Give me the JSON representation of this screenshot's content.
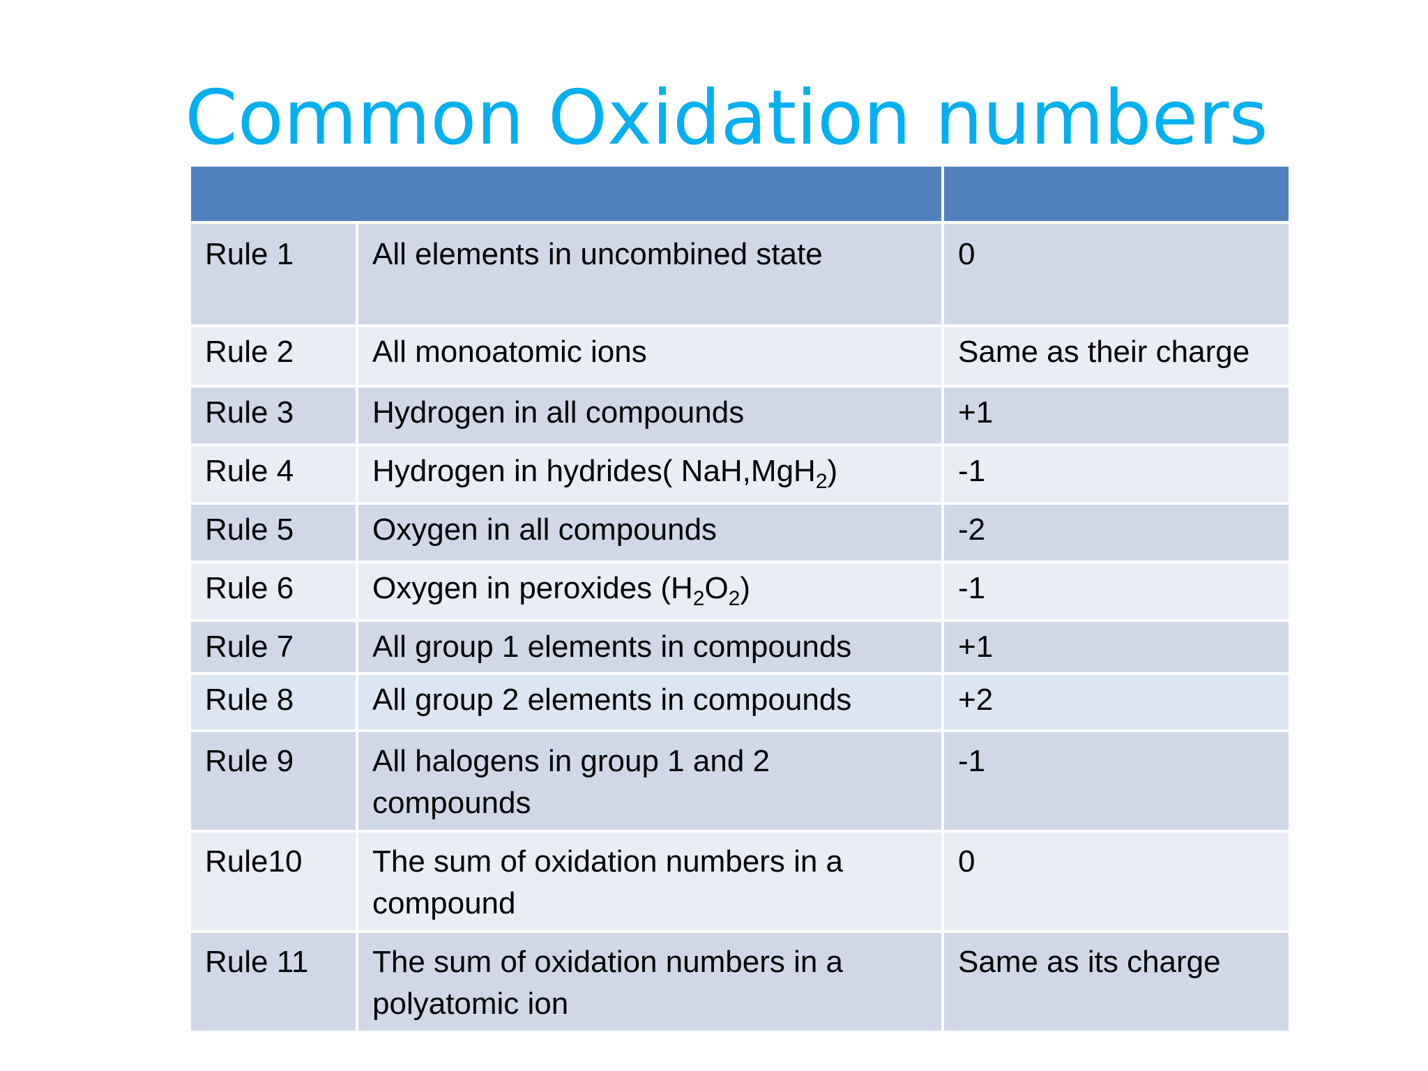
{
  "title": "Common Oxidation numbers",
  "table": {
    "header": [
      "",
      ""
    ],
    "rows": [
      {
        "rule": "Rule 1",
        "desc": "All elements in uncombined state",
        "value": "0"
      },
      {
        "rule": "Rule 2",
        "desc": "All monoatomic ions",
        "value": "Same as their charge"
      },
      {
        "rule": "Rule 3",
        "desc": "Hydrogen in  all compounds",
        "value": "+1"
      },
      {
        "rule": "Rule 4",
        "desc_pre": "Hydrogen in hydrides( NaH,MgH",
        "desc_sub": "2",
        "desc_post": ")",
        "value": "-1"
      },
      {
        "rule": "Rule 5",
        "desc": "Oxygen in all compounds",
        "value": "-2"
      },
      {
        "rule": "Rule 6",
        "desc_pre": "Oxygen in peroxides (H",
        "desc_sub": "2",
        "desc_mid": "O",
        "desc_sub2": "2",
        "desc_post": ")",
        "value": "-1"
      },
      {
        "rule": "Rule 7",
        "desc": "All group 1 elements in compounds",
        "value": "+1"
      },
      {
        "rule": "Rule 8",
        "desc": "All group 2 elements in compounds",
        "value": "+2"
      },
      {
        "rule": "Rule 9",
        "desc": "All halogens in group 1 and 2 compounds",
        "value": "-1"
      },
      {
        "rule": "Rule10",
        "desc": "The sum of oxidation numbers in a compound",
        "value": "0"
      },
      {
        "rule": "Rule 11",
        "desc": "The sum of oxidation numbers in a polyatomic ion",
        "value": "Same as its charge"
      }
    ]
  },
  "colors": {
    "title": "#00b0f0",
    "header": "#4f81bd",
    "row_dark": "#d0d8e8",
    "row_light": "#e9edf4"
  }
}
